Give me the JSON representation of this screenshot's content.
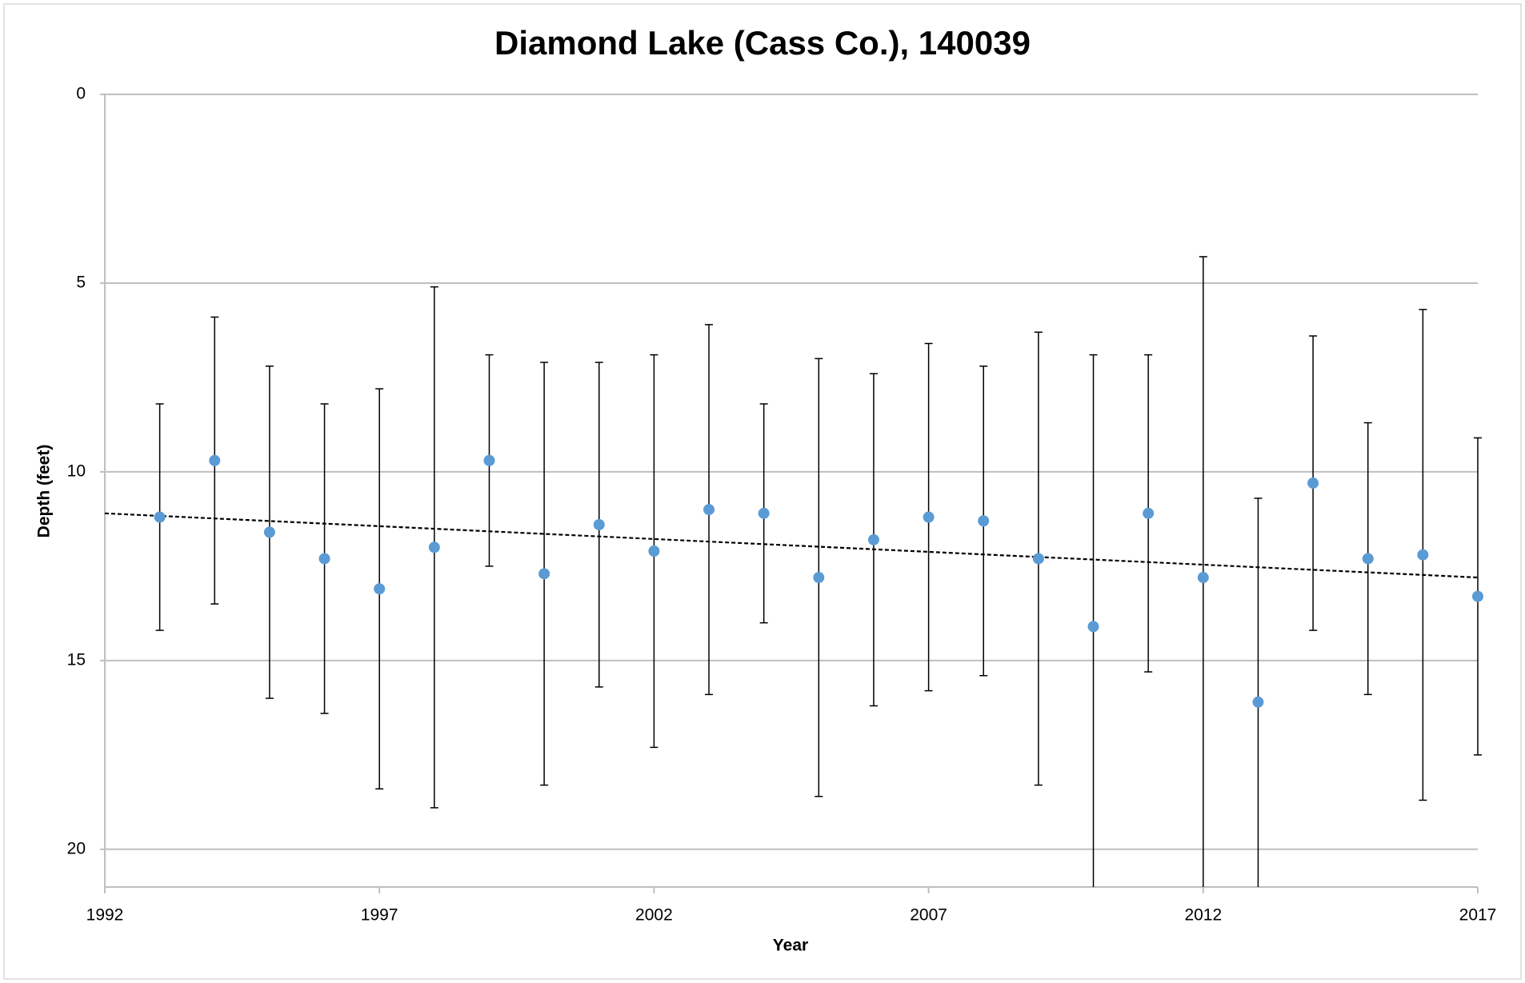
{
  "chart_data": {
    "type": "scatter",
    "title": "Diamond Lake (Cass Co.), 140039",
    "x_label": "Year",
    "y_label": "Depth (feet)",
    "x": [
      1993,
      1994,
      1995,
      1996,
      1997,
      1998,
      1999,
      2000,
      2001,
      2002,
      2003,
      2004,
      2005,
      2006,
      2007,
      2008,
      2009,
      2010,
      2011,
      2012,
      2013,
      2014,
      2015,
      2016,
      2017
    ],
    "values": [
      11.2,
      9.7,
      11.6,
      12.3,
      13.1,
      12.0,
      9.7,
      12.7,
      11.4,
      12.1,
      11.0,
      11.1,
      12.8,
      11.8,
      11.2,
      11.3,
      12.3,
      14.1,
      11.1,
      12.8,
      16.1,
      10.3,
      12.3,
      12.2,
      13.3
    ],
    "errors": [
      3.0,
      3.8,
      4.4,
      4.1,
      5.3,
      6.9,
      2.8,
      5.6,
      4.3,
      5.2,
      4.9,
      2.9,
      5.8,
      4.4,
      4.6,
      4.1,
      6.0,
      7.2,
      4.2,
      8.5,
      5.4,
      3.9,
      3.6,
      6.5,
      4.2
    ],
    "color": "#5b9bd5",
    "trendline": {
      "x": [
        1992,
        2017
      ],
      "values": [
        11.1,
        12.8
      ]
    },
    "xlim": [
      1992,
      2017
    ],
    "xticks": [
      1992,
      1997,
      2002,
      2007,
      2012,
      2017
    ],
    "ylim": [
      0,
      21
    ],
    "yticks": [
      0,
      5,
      10,
      15,
      20
    ],
    "y_inverted": true,
    "grid": true
  }
}
